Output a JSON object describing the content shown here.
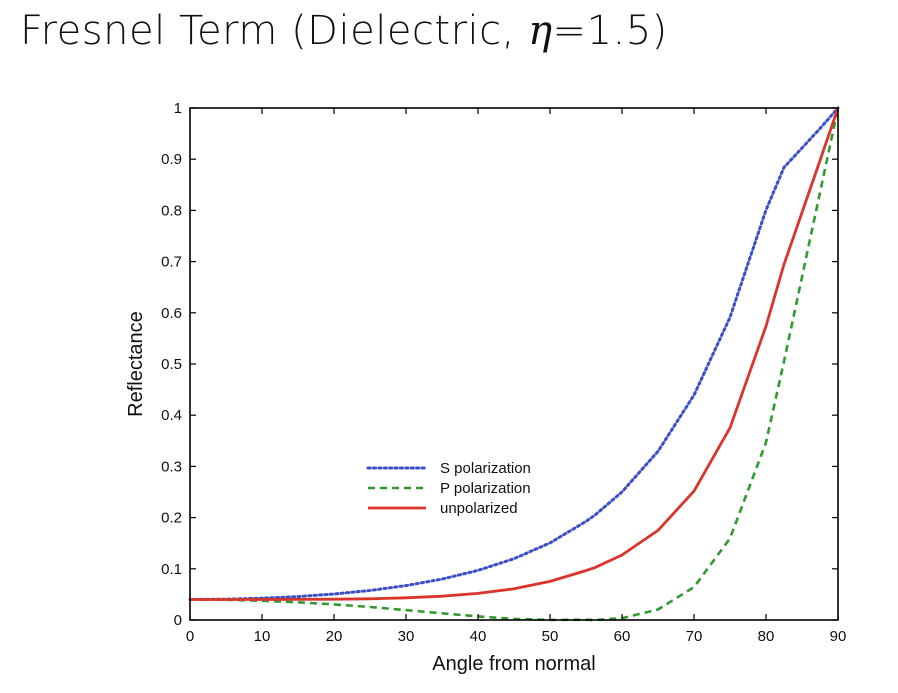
{
  "slide": {
    "title_prefix": "Fresnel Term (Dielectric, ",
    "title_symbol": "η",
    "title_suffix": "=1.5)"
  },
  "chart_data": {
    "type": "line",
    "title": "Fresnel Term (Dielectric, η=1.5)",
    "xlabel": "Angle from normal",
    "ylabel": "Reflectance",
    "xlim": [
      0,
      90
    ],
    "ylim": [
      0,
      1
    ],
    "x_ticks": [
      0,
      10,
      20,
      30,
      40,
      50,
      60,
      70,
      80,
      90
    ],
    "y_ticks": [
      0,
      0.1,
      0.2,
      0.3,
      0.4,
      0.5,
      0.6,
      0.7,
      0.8,
      0.9,
      1
    ],
    "y_tick_labels": [
      "0",
      "0.1",
      "0.2",
      "0.3",
      "0.4",
      "0.5",
      "0.6",
      "0.7",
      "0.8",
      "0.9",
      "1"
    ],
    "grid": false,
    "legend_position": "center",
    "x": [
      0,
      5,
      10,
      15,
      20,
      25,
      30,
      35,
      40,
      45,
      50,
      55,
      56.3,
      60,
      65,
      70,
      75,
      80,
      82.5,
      85,
      87.5,
      90
    ],
    "series": [
      {
        "name": "S polarization",
        "style": "dotted",
        "color": "#3a4fc8",
        "values": [
          0.04,
          0.0406,
          0.0425,
          0.0458,
          0.0508,
          0.0577,
          0.0672,
          0.0799,
          0.0969,
          0.1198,
          0.1506,
          0.1925,
          0.2054,
          0.2501,
          0.3294,
          0.4392,
          0.5912,
          0.8007,
          0.8839,
          0.9218,
          0.96,
          1.0
        ]
      },
      {
        "name": "P polarization",
        "style": "dashed",
        "color": "#2f9a2f",
        "values": [
          0.04,
          0.0394,
          0.0375,
          0.0345,
          0.0304,
          0.0253,
          0.0194,
          0.0131,
          0.007,
          0.0021,
          0.0001,
          0.0003,
          0.0,
          0.0036,
          0.0206,
          0.0642,
          0.1593,
          0.3469,
          0.505,
          0.67,
          0.835,
          1.0
        ]
      },
      {
        "name": "unpolarized",
        "style": "solid",
        "color": "#d9352b",
        "values": [
          0.04,
          0.04,
          0.04,
          0.0402,
          0.0406,
          0.0415,
          0.0433,
          0.0465,
          0.052,
          0.061,
          0.0754,
          0.0964,
          0.1027,
          0.1269,
          0.175,
          0.2517,
          0.3753,
          0.5738,
          0.6945,
          0.7959,
          0.8975,
          1.0
        ]
      }
    ]
  }
}
